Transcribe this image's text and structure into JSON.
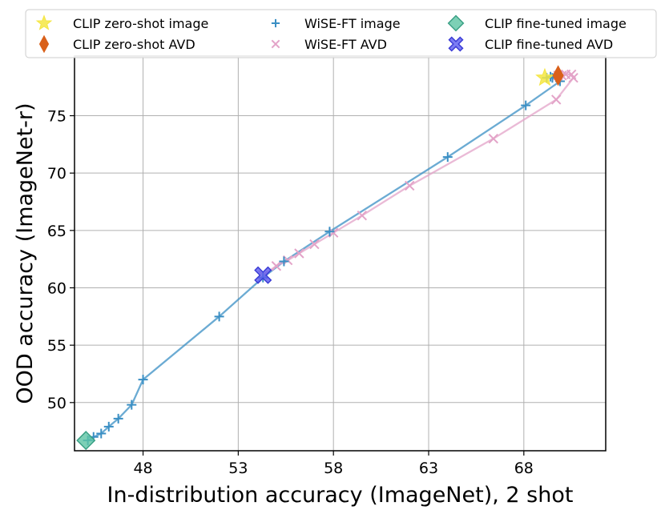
{
  "chart_data": {
    "type": "scatter",
    "title": "",
    "xlabel": "In-distribution accuracy (ImageNet), 2 shot",
    "ylabel": "OOD accuracy (ImageNet-r)",
    "xlim": [
      44.4,
      72.3
    ],
    "ylim": [
      45.8,
      80.2
    ],
    "x_ticks": [
      48,
      53,
      58,
      63,
      68
    ],
    "x_tick_labels": [
      "48",
      "53",
      "58",
      "63",
      "68"
    ],
    "y_ticks": [
      50,
      55,
      60,
      65,
      70,
      75
    ],
    "y_tick_labels": [
      "50",
      "55",
      "60",
      "65",
      "70",
      "75"
    ],
    "grid": true,
    "legend_position": "top",
    "series": [
      {
        "name": "CLIP zero-shot image",
        "marker": "star",
        "color": "#f5e642",
        "line": false,
        "points": [
          {
            "x": 69.1,
            "y": 78.3
          }
        ]
      },
      {
        "name": "CLIP zero-shot AVD",
        "marker": "thin-diamond",
        "color": "#d9601a",
        "line": false,
        "points": [
          {
            "x": 69.8,
            "y": 78.5
          }
        ]
      },
      {
        "name": "WiSE-FT image",
        "marker": "plus",
        "color": "#3a8fc4",
        "line": true,
        "points": [
          {
            "x": 45.1,
            "y": 46.7
          },
          {
            "x": 45.4,
            "y": 47.0
          },
          {
            "x": 45.8,
            "y": 47.3
          },
          {
            "x": 46.2,
            "y": 47.9
          },
          {
            "x": 46.7,
            "y": 48.6
          },
          {
            "x": 47.4,
            "y": 49.8
          },
          {
            "x": 48.0,
            "y": 52.0
          },
          {
            "x": 52.0,
            "y": 57.5
          },
          {
            "x": 54.3,
            "y": 60.9
          },
          {
            "x": 55.4,
            "y": 62.3
          },
          {
            "x": 57.8,
            "y": 64.9
          },
          {
            "x": 64.0,
            "y": 71.4
          },
          {
            "x": 68.1,
            "y": 75.9
          },
          {
            "x": 69.9,
            "y": 78.0
          },
          {
            "x": 69.5,
            "y": 78.3
          },
          {
            "x": 69.2,
            "y": 78.3
          },
          {
            "x": 69.4,
            "y": 78.4
          }
        ]
      },
      {
        "name": "WiSE-FT AVD",
        "marker": "x",
        "color": "#e3a3c8",
        "line": true,
        "points": [
          {
            "x": 54.3,
            "y": 61.1
          },
          {
            "x": 55.0,
            "y": 61.9
          },
          {
            "x": 55.6,
            "y": 62.4
          },
          {
            "x": 56.2,
            "y": 63.0
          },
          {
            "x": 57.0,
            "y": 63.8
          },
          {
            "x": 58.0,
            "y": 64.8
          },
          {
            "x": 59.5,
            "y": 66.3
          },
          {
            "x": 62.0,
            "y": 68.9
          },
          {
            "x": 66.4,
            "y": 73.0
          },
          {
            "x": 69.7,
            "y": 76.4
          },
          {
            "x": 70.6,
            "y": 78.3
          },
          {
            "x": 70.5,
            "y": 78.6
          },
          {
            "x": 70.2,
            "y": 78.6
          },
          {
            "x": 70.0,
            "y": 78.5
          },
          {
            "x": 69.8,
            "y": 78.5
          }
        ]
      },
      {
        "name": "CLIP fine-tuned image",
        "marker": "diamond",
        "color": "#5cc4a4",
        "line": false,
        "points": [
          {
            "x": 45.0,
            "y": 46.7
          }
        ]
      },
      {
        "name": "CLIP fine-tuned AVD",
        "marker": "x-filled",
        "color": "#5b5cf0",
        "line": false,
        "points": [
          {
            "x": 54.3,
            "y": 61.1
          }
        ]
      }
    ]
  }
}
